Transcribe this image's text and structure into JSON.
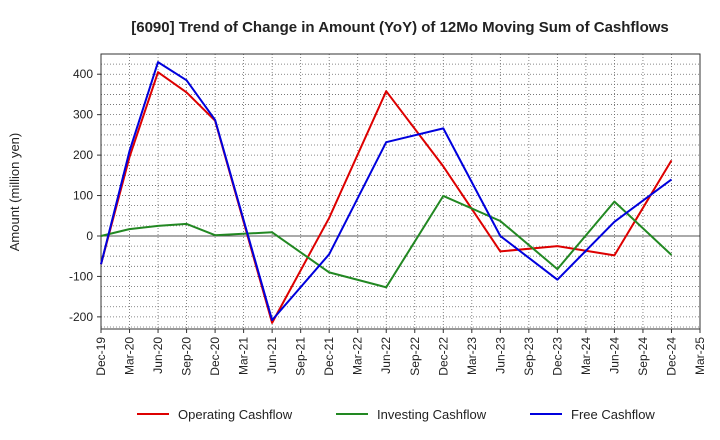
{
  "chart_data": {
    "type": "line",
    "title": "[6090]  Trend of Change in Amount (YoY) of 12Mo Moving Sum of Cashflows",
    "xlabel": "",
    "ylabel": "Amount (million yen)",
    "ylim": [
      -230,
      450
    ],
    "yticks": [
      -200,
      -100,
      0,
      100,
      200,
      300,
      400
    ],
    "categories": [
      "Dec-19",
      "Mar-20",
      "Jun-20",
      "Sep-20",
      "Dec-20",
      "Mar-21",
      "Jun-21",
      "Sep-21",
      "Dec-21",
      "Mar-22",
      "Jun-22",
      "Sep-22",
      "Dec-22",
      "Mar-23",
      "Jun-23",
      "Sep-23",
      "Dec-23",
      "Mar-24",
      "Jun-24",
      "Sep-24",
      "Dec-24",
      "Mar-25"
    ],
    "series": [
      {
        "name": "Operating Cashflow",
        "color": "#dd0000",
        "values": [
          -70,
          195,
          405,
          355,
          285,
          null,
          -215,
          null,
          45,
          null,
          358,
          null,
          172,
          null,
          -38,
          null,
          -25,
          null,
          -48,
          null,
          187,
          null
        ]
      },
      {
        "name": "Investing Cashflow",
        "color": "#228822",
        "values": [
          0,
          17,
          25,
          30,
          2,
          null,
          9,
          null,
          -90,
          null,
          -127,
          null,
          99,
          null,
          37,
          null,
          -82,
          null,
          85,
          null,
          -47,
          null
        ]
      },
      {
        "name": "Free Cashflow",
        "color": "#0000dd",
        "values": [
          -70,
          210,
          430,
          385,
          287,
          null,
          -208,
          null,
          -45,
          null,
          232,
          null,
          266,
          null,
          0,
          null,
          -108,
          null,
          35,
          null,
          140,
          null
        ]
      }
    ]
  }
}
